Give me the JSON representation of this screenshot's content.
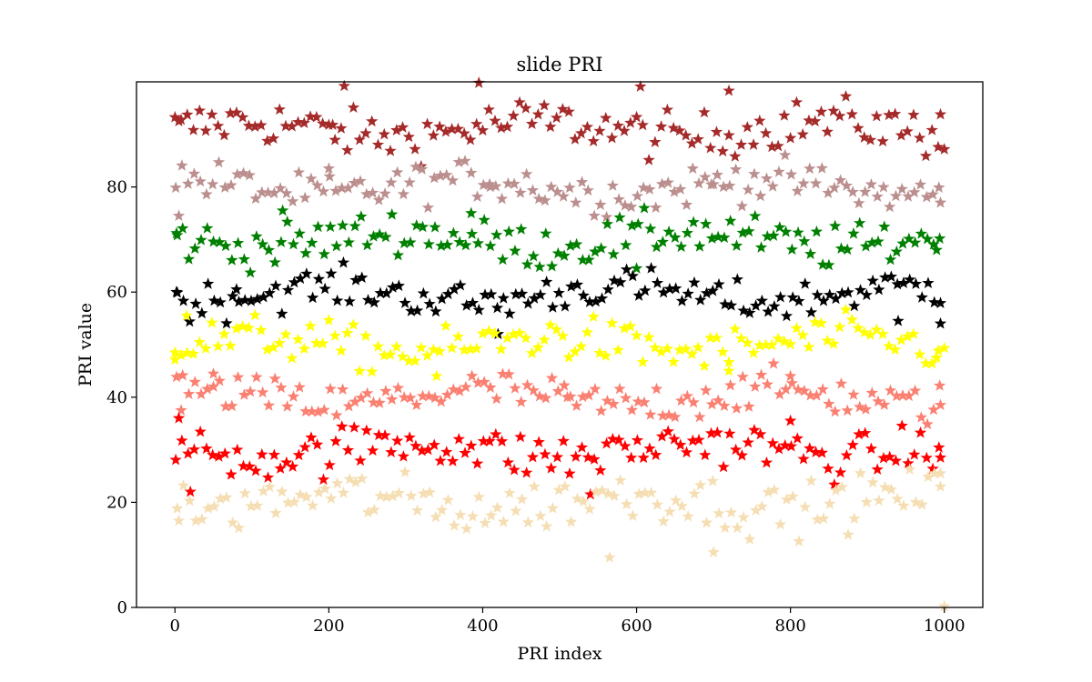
{
  "chart_data": {
    "type": "scatter",
    "title": "slide PRI",
    "xlabel": "PRI index",
    "ylabel": "PRI value",
    "xlim": [
      -50,
      1050
    ],
    "ylim": [
      0,
      100
    ],
    "xticks": [
      0,
      200,
      400,
      600,
      800,
      1000
    ],
    "yticks": [
      0,
      20,
      40,
      60,
      80
    ],
    "marker": "star",
    "grid": false,
    "series": [
      {
        "color": "#a52a2a",
        "center": 91,
        "spread": 3.2,
        "offset": 0,
        "sample_points": [
          [
            5,
            92.5
          ],
          [
            205,
            91.8
          ],
          [
            220,
            99.2
          ],
          [
            395,
            99.8
          ],
          [
            605,
            99.1
          ],
          [
            720,
            98.3
          ],
          [
            995,
            93.8
          ]
        ]
      },
      {
        "color": "#bc8f8f",
        "center": 80,
        "spread": 2.8,
        "offset": 1,
        "sample_points": [
          [
            5,
            74.5
          ],
          [
            200,
            83.5
          ],
          [
            410,
            80.0
          ],
          [
            700,
            80.5
          ],
          [
            995,
            77.0
          ]
        ]
      },
      {
        "color": "#008000",
        "center": 70,
        "spread": 3.0,
        "offset": 2,
        "sample_points": [
          [
            3,
            70.8
          ],
          [
            140,
            75.5
          ],
          [
            385,
            75.0
          ],
          [
            600,
            64.5
          ],
          [
            990,
            68.0
          ]
        ]
      },
      {
        "color": "#000000",
        "center": 59.5,
        "spread": 2.6,
        "offset": 3,
        "sample_points": [
          [
            2,
            60.0
          ],
          [
            80,
            60.5
          ],
          [
            420,
            52.0
          ],
          [
            940,
            54.5
          ],
          [
            995,
            54.0
          ]
        ]
      },
      {
        "color": "#ffff00",
        "center": 50,
        "spread": 3.0,
        "offset": 0,
        "sample_points": [
          [
            0,
            48.5
          ],
          [
            15,
            55.5
          ],
          [
            340,
            44.0
          ],
          [
            720,
            45.0
          ],
          [
            990,
            47.5
          ]
        ]
      },
      {
        "color": "#fa8072",
        "center": 40,
        "spread": 2.8,
        "offset": 2,
        "sample_points": [
          [
            8,
            37.5
          ],
          [
            50,
            42.0
          ],
          [
            510,
            40.0
          ],
          [
            800,
            44.0
          ],
          [
            995,
            38.5
          ]
        ]
      },
      {
        "color": "#ff0000",
        "center": 30,
        "spread": 3.2,
        "offset": 1,
        "sample_points": [
          [
            5,
            36.0
          ],
          [
            20,
            22.0
          ],
          [
            540,
            21.5
          ],
          [
            800,
            35.5
          ],
          [
            995,
            28.5
          ]
        ]
      },
      {
        "color": "#f5deb3",
        "center": 20,
        "spread": 3.5,
        "offset": 3,
        "sample_points": [
          [
            5,
            16.5
          ],
          [
            565,
            9.5
          ],
          [
            700,
            10.5
          ],
          [
            995,
            25.5
          ],
          [
            1000,
            0.2
          ]
        ]
      }
    ]
  }
}
